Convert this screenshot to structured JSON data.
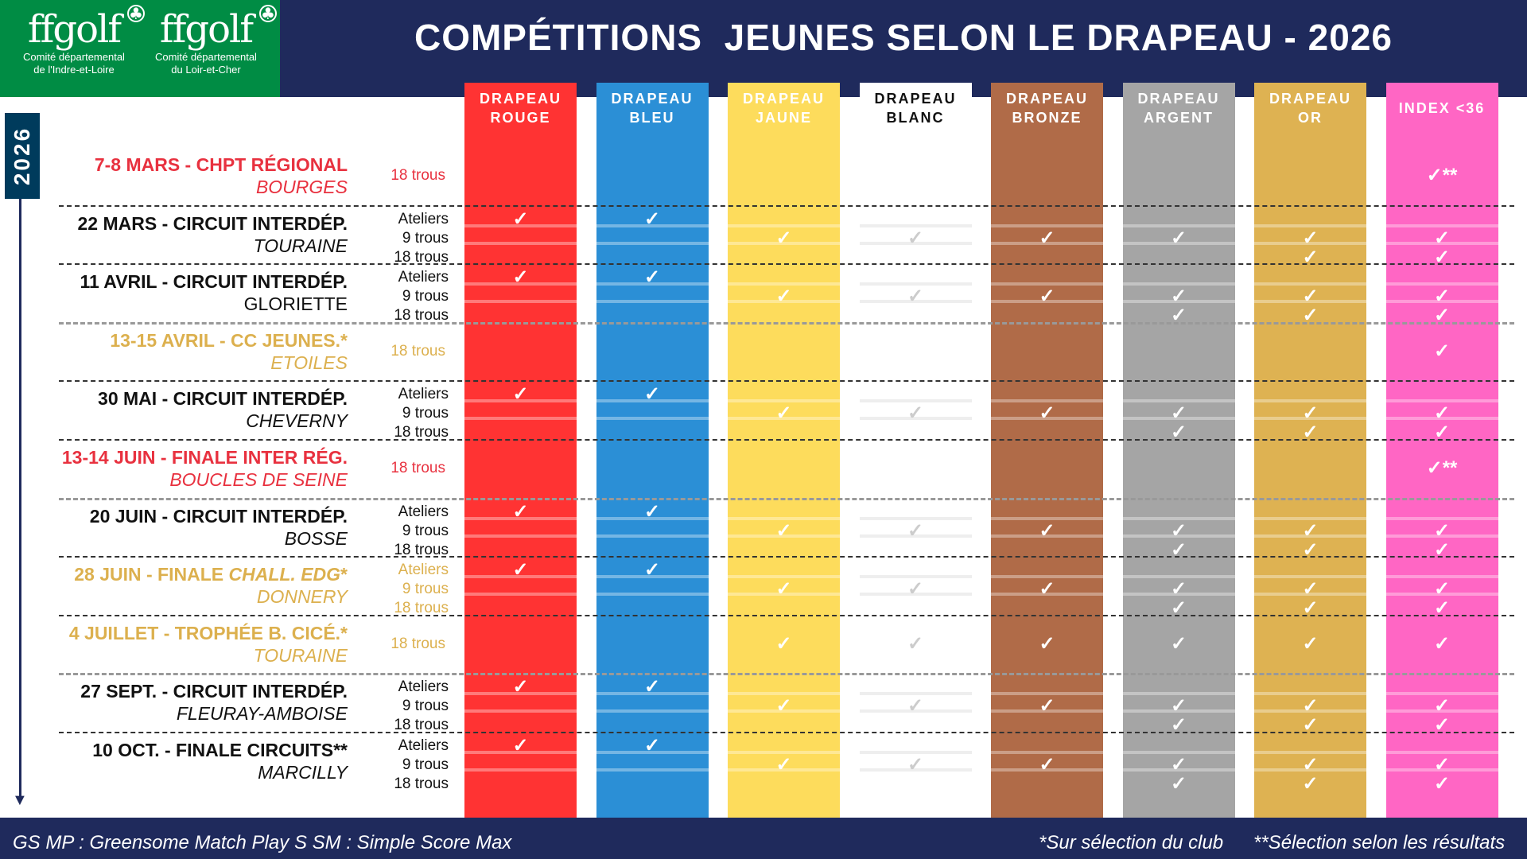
{
  "logos": [
    {
      "mark": "ffgolf",
      "line1": "Comité départemental",
      "line2": "de l'Indre-et-Loire"
    },
    {
      "mark": "ffgolf",
      "line1": "Comité départemental",
      "line2": "du Loir-et-Cher"
    }
  ],
  "title": "COMPÉTITIONS  JEUNES SELON LE DRAPEAU - 2026",
  "year": "2026",
  "colors": {
    "navy": "#1f2a5c",
    "green": "#008c44",
    "red_text": "#e8313f",
    "gold_text": "#dcb04e",
    "black_text": "#111111"
  },
  "columns": [
    {
      "key": "rouge",
      "label": "DRAPEAU\nROUGE",
      "bg": "#ff3333",
      "fg": "#ffffff",
      "check": "#ffffff"
    },
    {
      "key": "bleu",
      "label": "DRAPEAU\nBLEU",
      "bg": "#2b8fd6",
      "fg": "#ffffff",
      "check": "#ffffff"
    },
    {
      "key": "jaune",
      "label": "DRAPEAU\nJAUNE",
      "bg": "#fddc5c",
      "fg": "#ffffff",
      "check": "#ffffff"
    },
    {
      "key": "blanc",
      "label": "DRAPEAU\nBLANC",
      "bg": "#ffffff",
      "fg": "#111111",
      "check": "#cccccc"
    },
    {
      "key": "bronze",
      "label": "DRAPEAU\nBRONZE",
      "bg": "#b06b48",
      "fg": "#ffffff",
      "check": "#ffffff"
    },
    {
      "key": "argent",
      "label": "DRAPEAU\nARGENT",
      "bg": "#a5a5a5",
      "fg": "#ffffff",
      "check": "#ffffff"
    },
    {
      "key": "or",
      "label": "DRAPEAU\nOR",
      "bg": "#deb252",
      "fg": "#ffffff",
      "check": "#ffffff"
    },
    {
      "key": "index",
      "label": "INDEX <36",
      "bg": "#ff66c4",
      "fg": "#ffffff",
      "check": "#ffffff"
    }
  ],
  "check_symbol": "✓",
  "events": [
    {
      "color": "red",
      "title": [
        {
          "t": "7-8 MARS - CHPT RÉGIONAL"
        }
      ],
      "venue": "BOURGES",
      "venue_italic": true,
      "labels": [
        "18 trous"
      ],
      "checks": [
        {
          "index": "✓**"
        }
      ]
    },
    {
      "color": "black",
      "title": [
        {
          "t": "22 MARS - CIRCUIT INTERDÉP."
        }
      ],
      "venue": "TOURAINE",
      "venue_italic": true,
      "labels": [
        "Ateliers",
        "9 trous",
        "18 trous"
      ],
      "checks": [
        {
          "rouge": "✓",
          "bleu": "✓"
        },
        {
          "jaune": "✓",
          "blanc": "✓",
          "bronze": "✓",
          "argent": "✓",
          "or": "✓",
          "index": "✓"
        },
        {
          "or": "✓",
          "index": "✓"
        }
      ]
    },
    {
      "color": "black",
      "title": [
        {
          "t": "11 AVRIL - CIRCUIT INTERDÉP."
        }
      ],
      "venue": "GLORIETTE",
      "venue_italic": false,
      "labels": [
        "Ateliers",
        "9 trous",
        "18 trous"
      ],
      "checks": [
        {
          "rouge": "✓",
          "bleu": "✓"
        },
        {
          "jaune": "✓",
          "blanc": "✓",
          "bronze": "✓",
          "argent": "✓",
          "or": "✓",
          "index": "✓"
        },
        {
          "argent": "✓",
          "or": "✓",
          "index": "✓"
        }
      ]
    },
    {
      "color": "gold",
      "title": [
        {
          "t": "13-15 AVRIL - CC JEUNES.*"
        }
      ],
      "venue": "ETOILES",
      "venue_italic": true,
      "labels": [
        "18 trous"
      ],
      "checks": [
        {
          "index": "✓"
        }
      ]
    },
    {
      "color": "black",
      "title": [
        {
          "t": "30 MAI - CIRCUIT INTERDÉP."
        }
      ],
      "venue": "CHEVERNY",
      "venue_italic": true,
      "labels": [
        "Ateliers",
        "9 trous",
        "18 trous"
      ],
      "checks": [
        {
          "rouge": "✓",
          "bleu": "✓"
        },
        {
          "jaune": "✓",
          "blanc": "✓",
          "bronze": "✓",
          "argent": "✓",
          "or": "✓",
          "index": "✓"
        },
        {
          "argent": "✓",
          "or": "✓",
          "index": "✓"
        }
      ]
    },
    {
      "color": "red",
      "title": [
        {
          "t": "13-14 JUIN - FINALE INTER RÉG."
        }
      ],
      "venue": "BOUCLES DE SEINE",
      "venue_italic": true,
      "labels": [
        "18 trous"
      ],
      "checks": [
        {
          "index": "✓**"
        }
      ]
    },
    {
      "color": "black",
      "title": [
        {
          "t": "20 JUIN - CIRCUIT INTERDÉP."
        }
      ],
      "venue": "BOSSE",
      "venue_italic": true,
      "labels": [
        "Ateliers",
        "9 trous",
        "18 trous"
      ],
      "checks": [
        {
          "rouge": "✓",
          "bleu": "✓"
        },
        {
          "jaune": "✓",
          "blanc": "✓",
          "bronze": "✓",
          "argent": "✓",
          "or": "✓",
          "index": "✓"
        },
        {
          "argent": "✓",
          "or": "✓",
          "index": "✓"
        }
      ]
    },
    {
      "color": "gold",
      "title": [
        {
          "t": "28 JUIN - FINALE "
        },
        {
          "t": "CHALL. EDG",
          "i": true
        },
        {
          "t": "*"
        }
      ],
      "venue": "DONNERY",
      "venue_italic": true,
      "labels": [
        "Ateliers",
        "9 trous",
        "18 trous"
      ],
      "checks": [
        {
          "rouge": "✓",
          "bleu": "✓"
        },
        {
          "jaune": "✓",
          "blanc": "✓",
          "bronze": "✓",
          "argent": "✓",
          "or": "✓",
          "index": "✓"
        },
        {
          "argent": "✓",
          "or": "✓",
          "index": "✓"
        }
      ]
    },
    {
      "color": "gold",
      "title": [
        {
          "t": "4 JUILLET - TROPHÉE B. CICÉ.*"
        }
      ],
      "venue": "TOURAINE",
      "venue_italic": true,
      "labels": [
        "18 trous"
      ],
      "checks": [
        {
          "jaune": "✓",
          "blanc": "✓",
          "bronze": "✓",
          "argent": "✓",
          "or": "✓",
          "index": "✓"
        }
      ]
    },
    {
      "color": "black",
      "title": [
        {
          "t": "27 SEPT. - CIRCUIT INTERDÉP."
        }
      ],
      "venue": "FLEURAY-AMBOISE",
      "venue_italic": true,
      "labels": [
        "Ateliers",
        "9 trous",
        "18 trous"
      ],
      "checks": [
        {
          "rouge": "✓",
          "bleu": "✓"
        },
        {
          "jaune": "✓",
          "blanc": "✓",
          "bronze": "✓",
          "argent": "✓",
          "or": "✓",
          "index": "✓"
        },
        {
          "argent": "✓",
          "or": "✓",
          "index": "✓"
        }
      ]
    },
    {
      "color": "black",
      "title": [
        {
          "t": "10 OCT. - FINALE CIRCUITS**"
        }
      ],
      "venue": "MARCILLY",
      "venue_italic": true,
      "labels": [
        "Ateliers",
        "9 trous",
        "18 trous"
      ],
      "checks": [
        {
          "rouge": "✓",
          "bleu": "✓"
        },
        {
          "jaune": "✓",
          "blanc": "✓",
          "bronze": "✓",
          "argent": "✓",
          "or": "✓",
          "index": "✓"
        },
        {
          "argent": "✓",
          "or": "✓",
          "index": "✓"
        }
      ]
    }
  ],
  "footer": {
    "gs_mp": "GS MP : Greensome Match Play",
    "s_sm": "S SM : Simple Score Max",
    "club_note": "*Sur sélection du club",
    "results_note": "**Sélection selon les résultats"
  }
}
